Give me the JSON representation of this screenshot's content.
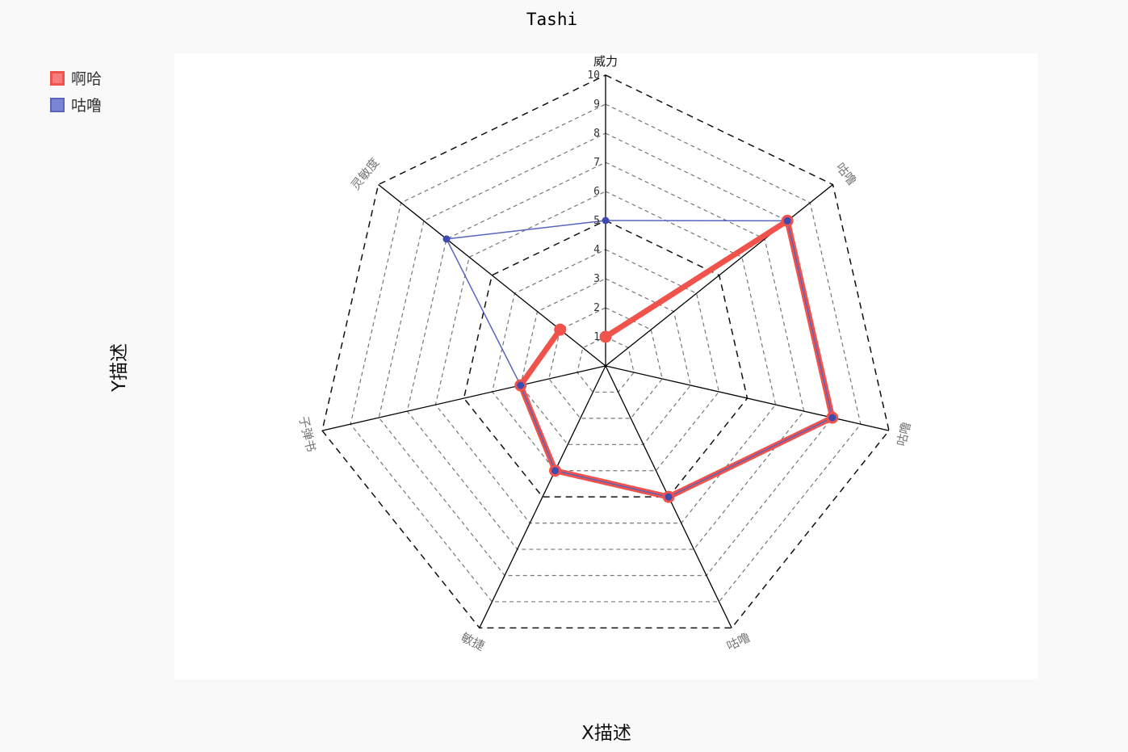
{
  "chart_data": {
    "type": "radar",
    "title": "Tashi",
    "xlabel": "X描述",
    "ylabel": "Y描述",
    "indicators": [
      {
        "name": "威力",
        "max": 10
      },
      {
        "name": "咕噜",
        "max": 10
      },
      {
        "name": "咕噜",
        "max": 10
      },
      {
        "name": "咕噜",
        "max": 10
      },
      {
        "name": "敏捷",
        "max": 10
      },
      {
        "name": "子弹书",
        "max": 10
      },
      {
        "name": "灵敏度",
        "max": 10
      }
    ],
    "rticks": [
      "1",
      "2",
      "3",
      "4",
      "5",
      "6",
      "7",
      "8",
      "9",
      "10"
    ],
    "series": [
      {
        "name": "啊哈",
        "color": "#f0524c",
        "values": [
          1,
          8,
          8,
          5,
          4,
          3,
          2
        ],
        "closed": false
      },
      {
        "name": "咕噜",
        "color": "#5965bd",
        "values": [
          5,
          8,
          8,
          5,
          4,
          3,
          7
        ],
        "closed": true
      }
    ],
    "legend_position": "top-left",
    "grid": true
  }
}
